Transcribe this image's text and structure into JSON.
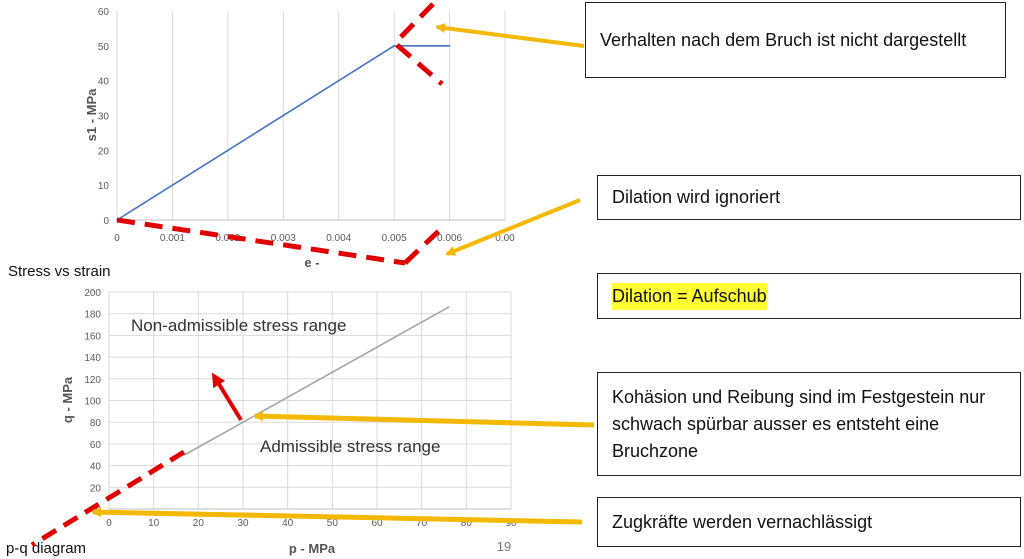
{
  "colors": {
    "series_line": "#4472c4",
    "mohr_line": "#a6a6a6",
    "dashed_red": "#e00000",
    "arrow_yellow": "#f5b800",
    "highlight": "#ffff33"
  },
  "chart_data": [
    {
      "type": "line",
      "title": "",
      "xlabel": "e -",
      "ylabel": "s1 - MPa",
      "xlim": [
        0,
        0.007
      ],
      "ylim": [
        0,
        60
      ],
      "x_ticks": [
        "0",
        "0.001",
        "0.002",
        "0.003",
        "0.004",
        "0.005",
        "0.006",
        "0.00"
      ],
      "y_ticks": [
        "0",
        "10",
        "20",
        "30",
        "40",
        "50",
        "60"
      ],
      "grid": "vertical",
      "series": [
        {
          "x": [
            0,
            0.005,
            0.006
          ],
          "y": [
            0,
            50,
            50
          ]
        }
      ],
      "caption": "Stress vs strain"
    },
    {
      "type": "line",
      "title": "",
      "xlabel": "p  - MPa",
      "ylabel": "q - MPa",
      "xlim": [
        0,
        90
      ],
      "ylim": [
        0,
        200
      ],
      "x_ticks": [
        "0",
        "10",
        "20",
        "30",
        "40",
        "50",
        "60",
        "70",
        "80",
        "90"
      ],
      "y_ticks": [
        "0",
        "20",
        "40",
        "60",
        "80",
        "100",
        "120",
        "140",
        "160",
        "180",
        "200"
      ],
      "grid": "both",
      "series": [
        {
          "x": [
            17,
            76
          ],
          "y": [
            50,
            186
          ]
        }
      ],
      "annotations": [
        "Non-admissible stress range",
        "Admissible stress range"
      ],
      "caption": "p-q diagram"
    }
  ],
  "notes": [
    "Verhalten nach dem Bruch ist nicht dargestellt",
    "Dilation wird ignoriert",
    "Dilation = Aufschub",
    "Kohäsion und Reibung sind im Festgestein nur schwach spürbar ausser es entsteht eine Bruchzone",
    "Zugkräfte werden vernachlässigt"
  ],
  "page_number": "19"
}
